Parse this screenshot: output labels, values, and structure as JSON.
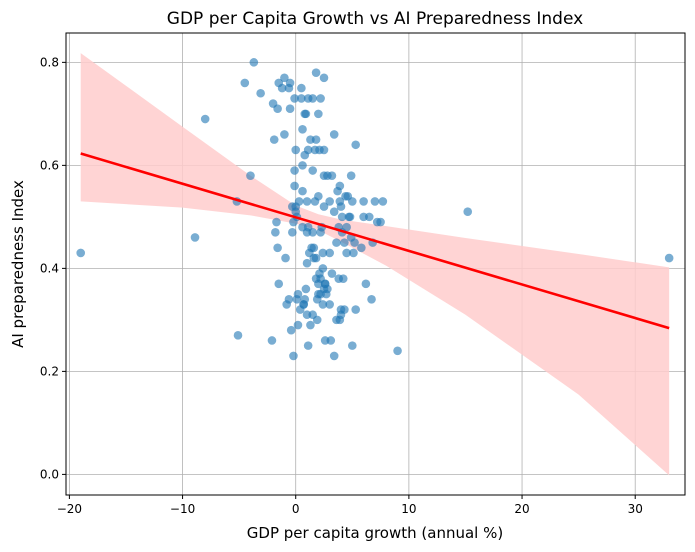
{
  "chart_data": {
    "type": "scatter",
    "title": "GDP per Capita Growth vs AI Preparedness Index",
    "xlabel": "GDP per capita growth (annual %)",
    "ylabel": "AI preparedness Index",
    "xlim": [
      -20.3,
      34.4
    ],
    "ylim": [
      -0.04,
      0.857
    ],
    "xticks": [
      -20,
      -10,
      0,
      10,
      20,
      30
    ],
    "yticks": [
      0.0,
      0.2,
      0.4,
      0.6,
      0.8
    ],
    "grid": true,
    "colors": {
      "points": "#1f77b4",
      "regression_line": "#ff0000",
      "confidence_band": "#ffcccc",
      "grid": "#b0b0b0"
    },
    "regression": {
      "start": {
        "x": -19.0,
        "y": 0.623
      },
      "end": {
        "x": 33.0,
        "y": 0.284
      }
    },
    "confidence_band": {
      "upper": [
        [
          -19.0,
          0.818
        ],
        [
          -10.0,
          0.675
        ],
        [
          -4.0,
          0.58
        ],
        [
          0.0,
          0.522
        ],
        [
          2.0,
          0.505
        ],
        [
          4.0,
          0.495
        ],
        [
          8.0,
          0.482
        ],
        [
          15.0,
          0.459
        ],
        [
          25.0,
          0.428
        ],
        [
          33.0,
          0.402
        ]
      ],
      "lower": [
        [
          -19.0,
          0.53
        ],
        [
          -10.0,
          0.518
        ],
        [
          -4.0,
          0.503
        ],
        [
          0.0,
          0.487
        ],
        [
          2.0,
          0.474
        ],
        [
          4.0,
          0.452
        ],
        [
          8.0,
          0.405
        ],
        [
          15.0,
          0.31
        ],
        [
          25.0,
          0.155
        ],
        [
          33.0,
          -0.002
        ]
      ]
    },
    "points": [
      [
        -19.0,
        0.43
      ],
      [
        -8.9,
        0.46
      ],
      [
        -8.0,
        0.69
      ],
      [
        -5.2,
        0.53
      ],
      [
        -5.1,
        0.27
      ],
      [
        -4.5,
        0.76
      ],
      [
        -4.0,
        0.58
      ],
      [
        -3.7,
        0.8
      ],
      [
        -3.1,
        0.74
      ],
      [
        -2.1,
        0.26
      ],
      [
        -2.0,
        0.72
      ],
      [
        -1.9,
        0.65
      ],
      [
        -1.8,
        0.47
      ],
      [
        -1.7,
        0.49
      ],
      [
        -1.6,
        0.71
      ],
      [
        -1.6,
        0.44
      ],
      [
        -1.5,
        0.76
      ],
      [
        -1.5,
        0.37
      ],
      [
        -1.2,
        0.75
      ],
      [
        -1.0,
        0.66
      ],
      [
        -1.0,
        0.77
      ],
      [
        -0.9,
        0.42
      ],
      [
        -0.8,
        0.33
      ],
      [
        -0.6,
        0.34
      ],
      [
        -0.6,
        0.75
      ],
      [
        -0.5,
        0.76
      ],
      [
        -0.5,
        0.71
      ],
      [
        -0.4,
        0.28
      ],
      [
        -0.3,
        0.52
      ],
      [
        -0.3,
        0.47
      ],
      [
        -0.2,
        0.23
      ],
      [
        -0.2,
        0.49
      ],
      [
        -0.1,
        0.73
      ],
      [
        -0.1,
        0.56
      ],
      [
        -0.1,
        0.59
      ],
      [
        0.0,
        0.52
      ],
      [
        0.0,
        0.63
      ],
      [
        0.0,
        0.51
      ],
      [
        0.1,
        0.5
      ],
      [
        0.1,
        0.34
      ],
      [
        0.2,
        0.29
      ],
      [
        0.2,
        0.35
      ],
      [
        0.3,
        0.53
      ],
      [
        0.4,
        0.32
      ],
      [
        0.5,
        0.75
      ],
      [
        0.5,
        0.73
      ],
      [
        0.6,
        0.67
      ],
      [
        0.6,
        0.6
      ],
      [
        0.6,
        0.55
      ],
      [
        0.6,
        0.48
      ],
      [
        0.7,
        0.33
      ],
      [
        0.7,
        0.33
      ],
      [
        0.8,
        0.34
      ],
      [
        0.8,
        0.7
      ],
      [
        0.8,
        0.62
      ],
      [
        0.9,
        0.7
      ],
      [
        0.9,
        0.36
      ],
      [
        1.0,
        0.31
      ],
      [
        1.0,
        0.53
      ],
      [
        1.0,
        0.47
      ],
      [
        1.0,
        0.41
      ],
      [
        1.1,
        0.63
      ],
      [
        1.1,
        0.48
      ],
      [
        1.1,
        0.73
      ],
      [
        1.1,
        0.25
      ],
      [
        1.2,
        0.43
      ],
      [
        1.3,
        0.29
      ],
      [
        1.3,
        0.65
      ],
      [
        1.4,
        0.44
      ],
      [
        1.5,
        0.31
      ],
      [
        1.5,
        0.73
      ],
      [
        1.5,
        0.59
      ],
      [
        1.5,
        0.47
      ],
      [
        1.6,
        0.44
      ],
      [
        1.6,
        0.42
      ],
      [
        1.7,
        0.63
      ],
      [
        1.7,
        0.53
      ],
      [
        1.8,
        0.78
      ],
      [
        1.8,
        0.65
      ],
      [
        1.8,
        0.42
      ],
      [
        1.8,
        0.38
      ],
      [
        1.9,
        0.34
      ],
      [
        1.9,
        0.3
      ],
      [
        2.0,
        0.37
      ],
      [
        2.0,
        0.35
      ],
      [
        2.0,
        0.7
      ],
      [
        2.0,
        0.54
      ],
      [
        2.1,
        0.39
      ],
      [
        2.1,
        0.63
      ],
      [
        2.2,
        0.73
      ],
      [
        2.2,
        0.38
      ],
      [
        2.2,
        0.47
      ],
      [
        2.2,
        0.35
      ],
      [
        2.3,
        0.48
      ],
      [
        2.4,
        0.4
      ],
      [
        2.4,
        0.33
      ],
      [
        2.4,
        0.43
      ],
      [
        2.5,
        0.63
      ],
      [
        2.5,
        0.77
      ],
      [
        2.5,
        0.58
      ],
      [
        2.5,
        0.52
      ],
      [
        2.5,
        0.36
      ],
      [
        2.6,
        0.26
      ],
      [
        2.6,
        0.37
      ],
      [
        2.6,
        0.37
      ],
      [
        2.7,
        0.35
      ],
      [
        2.8,
        0.58
      ],
      [
        2.8,
        0.36
      ],
      [
        3.0,
        0.43
      ],
      [
        3.0,
        0.33
      ],
      [
        3.0,
        0.53
      ],
      [
        3.1,
        0.26
      ],
      [
        3.2,
        0.39
      ],
      [
        3.2,
        0.58
      ],
      [
        3.4,
        0.23
      ],
      [
        3.4,
        0.51
      ],
      [
        3.4,
        0.66
      ],
      [
        3.6,
        0.3
      ],
      [
        3.6,
        0.45
      ],
      [
        3.7,
        0.55
      ],
      [
        3.8,
        0.38
      ],
      [
        3.8,
        0.48
      ],
      [
        3.9,
        0.56
      ],
      [
        3.9,
        0.3
      ],
      [
        3.9,
        0.53
      ],
      [
        4.0,
        0.31
      ],
      [
        4.0,
        0.52
      ],
      [
        4.0,
        0.32
      ],
      [
        4.1,
        0.5
      ],
      [
        4.1,
        0.47
      ],
      [
        4.2,
        0.38
      ],
      [
        4.3,
        0.45
      ],
      [
        4.3,
        0.32
      ],
      [
        4.4,
        0.54
      ],
      [
        4.5,
        0.48
      ],
      [
        4.5,
        0.43
      ],
      [
        4.6,
        0.54
      ],
      [
        4.7,
        0.5
      ],
      [
        4.8,
        0.5
      ],
      [
        4.9,
        0.58
      ],
      [
        4.9,
        0.46
      ],
      [
        5.0,
        0.25
      ],
      [
        5.0,
        0.53
      ],
      [
        5.1,
        0.43
      ],
      [
        5.2,
        0.45
      ],
      [
        5.3,
        0.32
      ],
      [
        5.3,
        0.64
      ],
      [
        5.8,
        0.44
      ],
      [
        6.0,
        0.53
      ],
      [
        6.0,
        0.5
      ],
      [
        6.2,
        0.37
      ],
      [
        6.5,
        0.5
      ],
      [
        6.7,
        0.34
      ],
      [
        6.8,
        0.45
      ],
      [
        7.0,
        0.53
      ],
      [
        7.2,
        0.49
      ],
      [
        7.5,
        0.49
      ],
      [
        7.7,
        0.53
      ],
      [
        9.0,
        0.24
      ],
      [
        15.2,
        0.51
      ],
      [
        33.0,
        0.42
      ]
    ]
  }
}
